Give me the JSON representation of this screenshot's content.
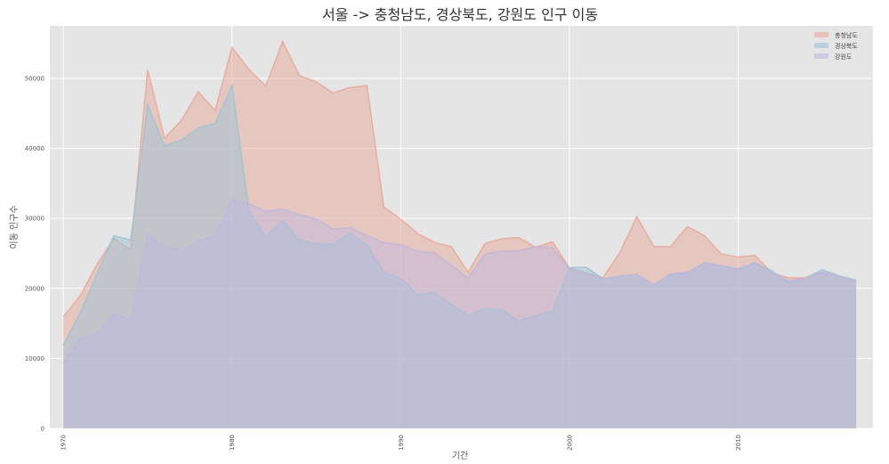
{
  "chart_data": {
    "type": "area",
    "title": "서울 -> 충청남도, 경상북도, 강원도 인구 이동",
    "xlabel": "기간",
    "ylabel": "이동 인구수",
    "xlim": [
      1969.2,
      2018.0
    ],
    "ylim": [
      0,
      57500
    ],
    "x_ticks": [
      "1970",
      "1980",
      "1990",
      "2000",
      "2010"
    ],
    "y_ticks": [
      "0",
      "10000",
      "20000",
      "30000",
      "40000",
      "50000"
    ],
    "grid": true,
    "legend_position": "top-right",
    "stacked": false,
    "x": [
      1970,
      1971,
      1972,
      1973,
      1974,
      1975,
      1976,
      1977,
      1978,
      1979,
      1980,
      1981,
      1982,
      1983,
      1984,
      1985,
      1986,
      1987,
      1988,
      1989,
      1990,
      1991,
      1992,
      1993,
      1994,
      1995,
      1996,
      1997,
      1998,
      1999,
      2000,
      2001,
      2002,
      2003,
      2004,
      2005,
      2006,
      2007,
      2008,
      2009,
      2010,
      2011,
      2012,
      2013,
      2014,
      2015,
      2016,
      2017
    ],
    "series": [
      {
        "name": "충청남도",
        "color": "#e8a99a",
        "values": [
          15954,
          18943,
          23406,
          27139,
          25509,
          51205,
          41447,
          43993,
          48091,
          45388,
          54398,
          51294,
          48874,
          55252,
          50381,
          49472,
          47902,
          48699,
          48962,
          31651,
          29868,
          27847,
          26563,
          25941,
          22283,
          26421,
          27075,
          27253,
          25865,
          26654,
          22889,
          22233,
          21533,
          25145,
          30229,
          25986,
          25961,
          28831,
          27552,
          24905,
          24453,
          24705,
          22209,
          21504,
          21504,
          22313,
          21697,
          20914
        ]
      },
      {
        "name": "경상북도",
        "color": "#9cc3d5",
        "values": [
          11868,
          16459,
          22073,
          27531,
          26902,
          46177,
          40376,
          41155,
          42940,
          43563,
          48960,
          31028,
          27361,
          29703,
          26866,
          26373,
          26261,
          27914,
          26155,
          22299,
          21410,
          19091,
          19395,
          17727,
          16171,
          17090,
          16946,
          15319,
          16105,
          16660,
          22945,
          23002,
          21340,
          21743,
          22002,
          20536,
          21855,
          22192,
          23694,
          23233,
          22791,
          23654,
          22505,
          20790,
          21471,
          22670,
          21791,
          21152
        ]
      },
      {
        "name": "강원도",
        "color": "#c0b7dd",
        "values": [
          9352,
          12885,
          13561,
          16481,
          15479,
          27837,
          25927,
          25415,
          26700,
          27599,
          32753,
          32123,
          30995,
          31289,
          30516,
          29878,
          28493,
          28662,
          27558,
          26503,
          26230,
          25296,
          25100,
          23303,
          21446,
          24942,
          25300,
          25342,
          25932,
          25816,
          22908,
          21983,
          21225,
          21698,
          22005,
          20523,
          22082,
          22277,
          23599,
          23245,
          22666,
          23546,
          22273,
          21117,
          21453,
          22269,
          21703,
          20914
        ]
      }
    ]
  }
}
